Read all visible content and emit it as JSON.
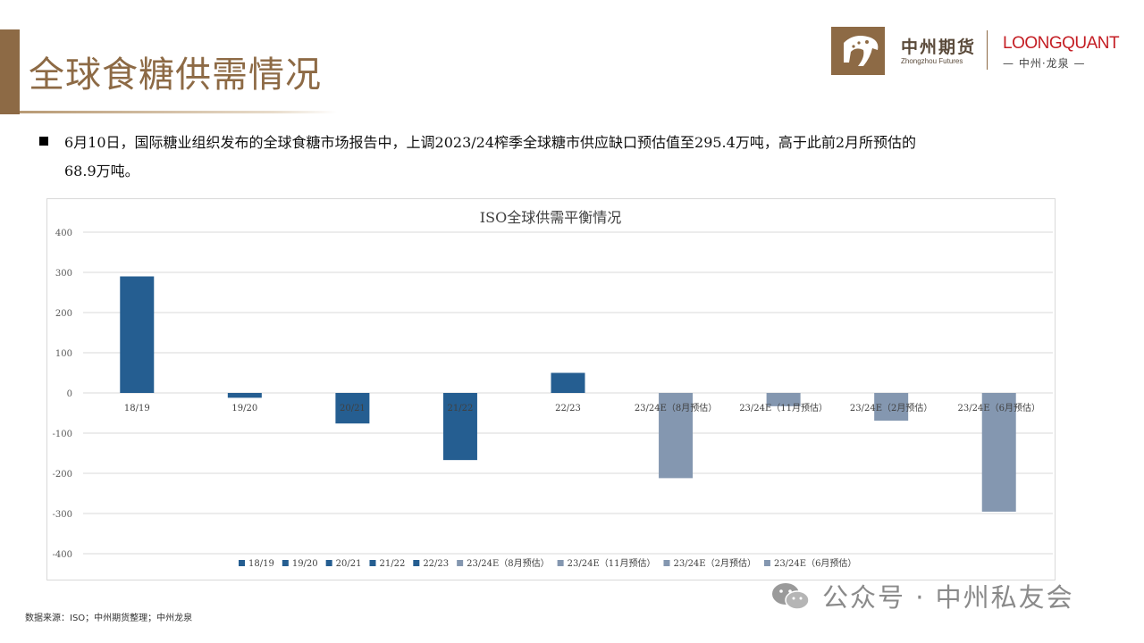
{
  "header": {
    "title": "全球食糖供需情况",
    "logo_cn": "中州期货",
    "logo_en": "Zhongzhou Futures",
    "partner_en": "LOONGQUANT",
    "partner_cn": "— 中州·龙泉 —"
  },
  "body": {
    "line1": "6月10日，国际糖业组织发布的全球食糖市场报告中，上调2023/24榨季全球糖市供应缺口预估值至295.4万吨，高于此前2月所预估的",
    "line2": "68.9万吨。"
  },
  "footer": {
    "source": "数据来源：ISO；中州期货整理；中州龙泉"
  },
  "watermark": {
    "text": "公众号 · 中州私友会"
  },
  "colors": {
    "brand": "#8d6a45",
    "bar_actual": "#255e91",
    "bar_estimate": "#8497b0",
    "red": "#c41e24"
  },
  "chart_data": {
    "type": "bar",
    "title": "ISO全球供需平衡情况",
    "categories": [
      "18/19",
      "19/20",
      "20/21",
      "21/22",
      "22/23",
      "23/24E（8月预估）",
      "23/24E（11月预估）",
      "23/24E（2月预估）",
      "23/24E（6月预估）"
    ],
    "values": [
      290,
      -12,
      -76,
      -167,
      50,
      -212,
      -33,
      -69,
      -295.4
    ],
    "bar_colors": [
      "#255e91",
      "#255e91",
      "#255e91",
      "#255e91",
      "#255e91",
      "#8497b0",
      "#8497b0",
      "#8497b0",
      "#8497b0"
    ],
    "ylim": [
      -400,
      400
    ],
    "yticks": [
      "400",
      "300",
      "200",
      "100",
      "0",
      "-100",
      "-200",
      "-300",
      "-400"
    ],
    "legend": [
      "18/19",
      "19/20",
      "20/21",
      "21/22",
      "22/23",
      "23/24E（8月预估）",
      "23/24E（11月预估）",
      "23/24E（2月预估）",
      "23/24E（6月预估）"
    ],
    "legend_position": "bottom",
    "grid": true,
    "xlabel": "",
    "ylabel": ""
  }
}
